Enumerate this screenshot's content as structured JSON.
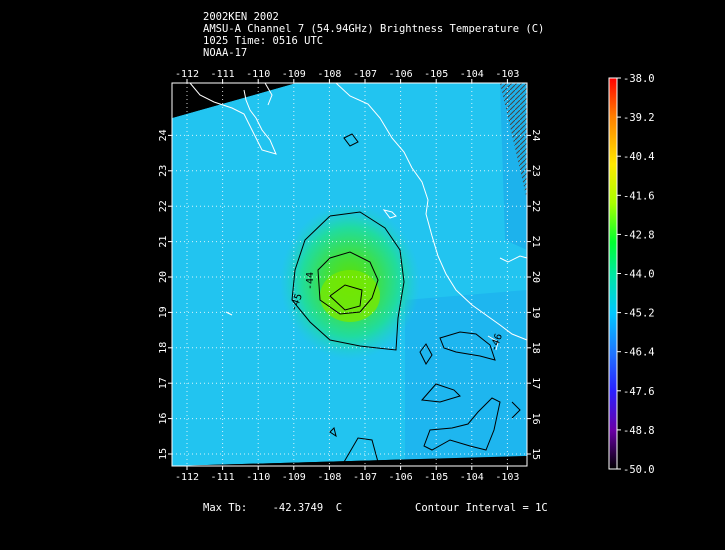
{
  "title": {
    "line1": "2002KEN 2002",
    "line2": "AMSU-A Channel 7 (54.94GHz) Brightness Temperature (C)",
    "line3": "1025 Time: 0516 UTC",
    "line4": "NOAA-17"
  },
  "map": {
    "lon_ticks": [
      "-112",
      "-111",
      "-110",
      "-109",
      "-108",
      "-107",
      "-106",
      "-105",
      "-104",
      "-103"
    ],
    "lat_ticks": [
      "15",
      "16",
      "17",
      "18",
      "19",
      "20",
      "21",
      "22",
      "23",
      "24"
    ],
    "contour_labels": [
      "-44",
      "-45",
      "-45",
      "-46"
    ]
  },
  "colorbar": {
    "labels": [
      "-38.0",
      "-39.2",
      "-40.4",
      "-41.6",
      "-42.8",
      "-44.0",
      "-45.2",
      "-46.4",
      "-47.6",
      "-48.8",
      "-50.0"
    ],
    "colors": [
      "#ff0000",
      "#ff7a00",
      "#ffe600",
      "#a0ff00",
      "#00ff40",
      "#00e0a0",
      "#00c8ff",
      "#2a7cff",
      "#3a1cff",
      "#6a00a0",
      "#200040"
    ]
  },
  "footer": {
    "max_label": "Max Tb:",
    "max_value": "-42.3749",
    "max_unit": "C",
    "contour_interval": "Contour Interval = 1C"
  }
}
